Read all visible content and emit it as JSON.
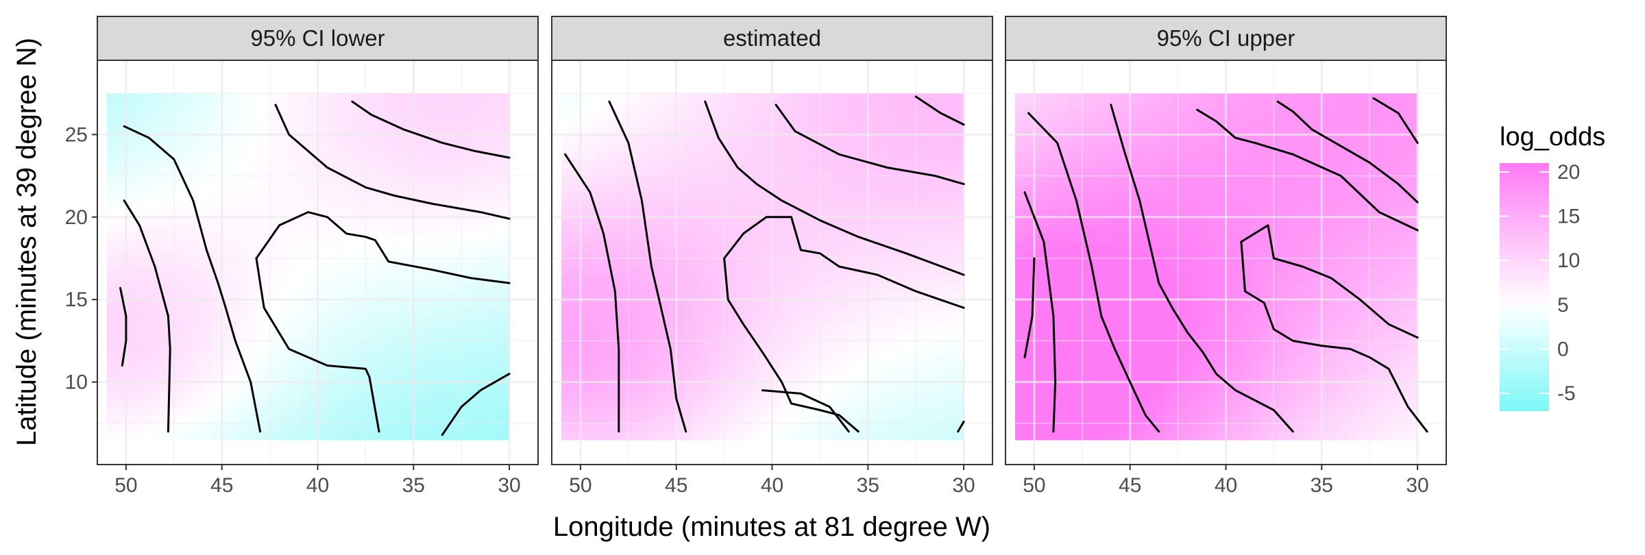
{
  "chart_data": {
    "type": "heatmap",
    "subtype": "faceted filled contour map with contour lines",
    "facets": [
      "95% CI lower",
      "estimated",
      "95% CI upper"
    ],
    "xlabel": "Longitude (minutes at 81 degree W)",
    "ylabel": "Latitude (minutes at 39 degree N)",
    "x_reversed": true,
    "xlim": [
      51.5,
      28.5
    ],
    "ylim": [
      5,
      29.5
    ],
    "x_ticks": [
      50,
      45,
      40,
      35,
      30
    ],
    "x_tick_labels": [
      "50",
      "45",
      "40",
      "35",
      "30"
    ],
    "y_ticks": [
      10,
      15,
      20,
      25
    ],
    "y_tick_labels": [
      "10",
      "15",
      "20",
      "25"
    ],
    "grid": true,
    "x_range_data": [
      51,
      30
    ],
    "y_range_data": [
      6.5,
      27.5
    ],
    "legend": {
      "title": "log_odds",
      "placement": "right",
      "ticks": [
        20,
        15,
        10,
        5,
        0,
        -5
      ],
      "tick_labels": [
        "20",
        "15",
        "10",
        "5",
        "0",
        "-5"
      ],
      "range": [
        -7,
        21
      ],
      "colors": {
        "low": "#7df7f7",
        "mid": "#ffffff",
        "high": "#ff7af5",
        "midpoint": 5
      }
    },
    "colors": {
      "panel_background": "#ffffff",
      "grid": "#ebebeb",
      "panel_border": "#333333",
      "strip_fill": "#d9d9d9",
      "contour": "#000000"
    },
    "surfaces": [
      {
        "facet": "95% CI lower",
        "hotspots": [
          {
            "x": 51,
            "y": 12.5,
            "value": 9,
            "spread": 3.5
          },
          {
            "x": 33,
            "y": 28,
            "value": 10,
            "spread": 5
          }
        ],
        "base": -5,
        "gradient": "warm-west and north-east, cool centre and south-east"
      },
      {
        "facet": "estimated",
        "hotspots": [
          {
            "x": 51,
            "y": 12,
            "value": 14,
            "spread": 4
          },
          {
            "x": 31,
            "y": 28,
            "value": 13,
            "spread": 6
          }
        ],
        "base": -3,
        "gradient": "warm-west and north-east, cool centre and south-east"
      },
      {
        "facet": "95% CI upper",
        "hotspots": [
          {
            "x": 51,
            "y": 10,
            "value": 21,
            "spread": 5
          },
          {
            "x": 31,
            "y": 28,
            "value": 17,
            "spread": 7
          }
        ],
        "base": -2,
        "gradient": "warm-west and north-east, cool centre and south-east"
      }
    ],
    "contours": [
      {
        "facet": "95% CI lower",
        "lines": [
          [
            [
              50.2,
              11
            ],
            [
              50,
              12.5
            ],
            [
              50,
              14
            ],
            [
              50.3,
              15.7
            ]
          ],
          [
            [
              50.1,
              21
            ],
            [
              49.3,
              19.5
            ],
            [
              48.5,
              17
            ],
            [
              47.8,
              14
            ],
            [
              47.7,
              12
            ],
            [
              47.8,
              7
            ]
          ],
          [
            [
              50.1,
              25.5
            ],
            [
              48.8,
              24.8
            ],
            [
              47.5,
              23.5
            ],
            [
              46.5,
              21
            ],
            [
              45.8,
              18
            ],
            [
              45.2,
              16
            ],
            [
              44.8,
              14.5
            ],
            [
              44.3,
              12.5
            ],
            [
              43.5,
              10
            ],
            [
              43,
              7
            ]
          ],
          [
            [
              43.2,
              17.5
            ],
            [
              42.8,
              14.5
            ],
            [
              41.5,
              12
            ],
            [
              39.5,
              11
            ],
            [
              37.5,
              10.8
            ],
            [
              37.3,
              10.3
            ],
            [
              36.8,
              7
            ]
          ],
          [
            [
              43.2,
              17.5
            ],
            [
              42,
              19.5
            ],
            [
              40.5,
              20.3
            ],
            [
              39.5,
              20
            ],
            [
              38.5,
              19
            ],
            [
              37.5,
              18.8
            ],
            [
              37,
              18.6
            ],
            [
              36.3,
              17.3
            ],
            [
              34,
              16.8
            ],
            [
              32,
              16.3
            ],
            [
              30,
              16
            ]
          ],
          [
            [
              42.2,
              26.8
            ],
            [
              41.5,
              25
            ],
            [
              39.5,
              23
            ],
            [
              37.5,
              21.8
            ],
            [
              36,
              21.3
            ],
            [
              34,
              20.8
            ],
            [
              31.5,
              20.3
            ],
            [
              30,
              19.9
            ]
          ],
          [
            [
              38.2,
              27
            ],
            [
              37.2,
              26.2
            ],
            [
              35.5,
              25.3
            ],
            [
              33.5,
              24.5
            ],
            [
              31.8,
              24
            ],
            [
              30,
              23.6
            ]
          ],
          [
            [
              33.5,
              6.8
            ],
            [
              32.5,
              8.5
            ],
            [
              31.5,
              9.5
            ],
            [
              30,
              10.5
            ]
          ]
        ]
      },
      {
        "facet": "estimated",
        "lines": [
          [
            [
              50.8,
              23.8
            ],
            [
              49.5,
              21.5
            ],
            [
              48.8,
              19
            ],
            [
              48.2,
              15.5
            ],
            [
              48,
              12
            ],
            [
              48,
              7
            ]
          ],
          [
            [
              48.5,
              27
            ],
            [
              47.5,
              24.5
            ],
            [
              46.8,
              21
            ],
            [
              46.3,
              17
            ],
            [
              45.8,
              14.5
            ],
            [
              45.3,
              12
            ],
            [
              45,
              9
            ],
            [
              44.5,
              7
            ]
          ],
          [
            [
              43.5,
              27
            ],
            [
              42.8,
              24.8
            ],
            [
              41.8,
              23
            ],
            [
              40.8,
              22
            ],
            [
              39.5,
              21
            ],
            [
              37.5,
              19.8
            ],
            [
              35.5,
              18.8
            ],
            [
              33,
              17.8
            ],
            [
              30,
              16.5
            ]
          ],
          [
            [
              42.5,
              17.5
            ],
            [
              42.3,
              15
            ],
            [
              41.5,
              13.5
            ],
            [
              40.5,
              11.8
            ],
            [
              39.5,
              10
            ],
            [
              39,
              8.7
            ],
            [
              37.5,
              8.3
            ],
            [
              36.5,
              8
            ],
            [
              35.5,
              7
            ]
          ],
          [
            [
              42.5,
              17.5
            ],
            [
              41.5,
              19
            ],
            [
              40.3,
              20
            ],
            [
              39,
              20
            ],
            [
              38.5,
              18
            ],
            [
              37.5,
              17.8
            ],
            [
              36.5,
              17
            ],
            [
              34.5,
              16.5
            ],
            [
              32.5,
              15.5
            ],
            [
              30,
              14.5
            ]
          ],
          [
            [
              39.8,
              26.8
            ],
            [
              38.8,
              25.2
            ],
            [
              36.5,
              23.8
            ],
            [
              34,
              23
            ],
            [
              31.5,
              22.5
            ],
            [
              30,
              22
            ]
          ],
          [
            [
              32.5,
              27.3
            ],
            [
              31.2,
              26.3
            ],
            [
              30,
              25.6
            ]
          ],
          [
            [
              40.5,
              9.5
            ],
            [
              38.5,
              9.3
            ],
            [
              37,
              8.5
            ],
            [
              36,
              7
            ]
          ],
          [
            [
              30.3,
              7
            ],
            [
              30,
              7.6
            ]
          ]
        ]
      },
      {
        "facet": "95% CI upper",
        "lines": [
          [
            [
              50.5,
              11.5
            ],
            [
              50.1,
              14
            ],
            [
              50,
              17.5
            ]
          ],
          [
            [
              50.5,
              21.5
            ],
            [
              49.5,
              18.5
            ],
            [
              49,
              14
            ],
            [
              48.9,
              10
            ],
            [
              49,
              7
            ]
          ],
          [
            [
              50.3,
              26.3
            ],
            [
              48.8,
              24.5
            ],
            [
              47.8,
              21
            ],
            [
              47,
              17
            ],
            [
              46.5,
              14
            ],
            [
              45.8,
              12
            ],
            [
              45,
              10
            ],
            [
              44.2,
              8
            ],
            [
              43.5,
              7
            ]
          ],
          [
            [
              46,
              26.8
            ],
            [
              45.3,
              24
            ],
            [
              44.5,
              21
            ],
            [
              44,
              18.5
            ],
            [
              43.5,
              16
            ],
            [
              42.8,
              14.5
            ],
            [
              42,
              13
            ],
            [
              41.2,
              11.8
            ],
            [
              40.5,
              10.5
            ],
            [
              39.5,
              9.5
            ],
            [
              37.5,
              8.3
            ],
            [
              36.5,
              7
            ]
          ],
          [
            [
              41.5,
              26.5
            ],
            [
              40.5,
              25.8
            ],
            [
              39.5,
              24.8
            ],
            [
              38.5,
              24.5
            ],
            [
              36.5,
              23.8
            ],
            [
              34,
              22.5
            ],
            [
              32,
              20.3
            ],
            [
              30,
              19.2
            ]
          ],
          [
            [
              39.2,
              18.5
            ],
            [
              39,
              15.5
            ],
            [
              38,
              14.8
            ],
            [
              37.5,
              13.2
            ],
            [
              36.5,
              12.5
            ],
            [
              35,
              12.2
            ],
            [
              33.5,
              12
            ],
            [
              32.5,
              11.5
            ],
            [
              31.5,
              10.8
            ],
            [
              30.5,
              8.5
            ],
            [
              29.5,
              7
            ]
          ],
          [
            [
              39.2,
              18.5
            ],
            [
              38.5,
              19
            ],
            [
              37.8,
              19.5
            ],
            [
              37.5,
              17.5
            ],
            [
              36,
              17
            ],
            [
              34.5,
              16.3
            ],
            [
              33,
              15
            ],
            [
              31.5,
              13.5
            ],
            [
              30,
              12.7
            ]
          ],
          [
            [
              37.3,
              27
            ],
            [
              36.5,
              26.4
            ],
            [
              35.5,
              25.3
            ],
            [
              34,
              24.3
            ],
            [
              32.5,
              23.3
            ],
            [
              31,
              22
            ],
            [
              30,
              20.9
            ]
          ],
          [
            [
              32.3,
              27.2
            ],
            [
              31,
              26.3
            ],
            [
              30,
              24.5
            ]
          ]
        ]
      }
    ]
  }
}
